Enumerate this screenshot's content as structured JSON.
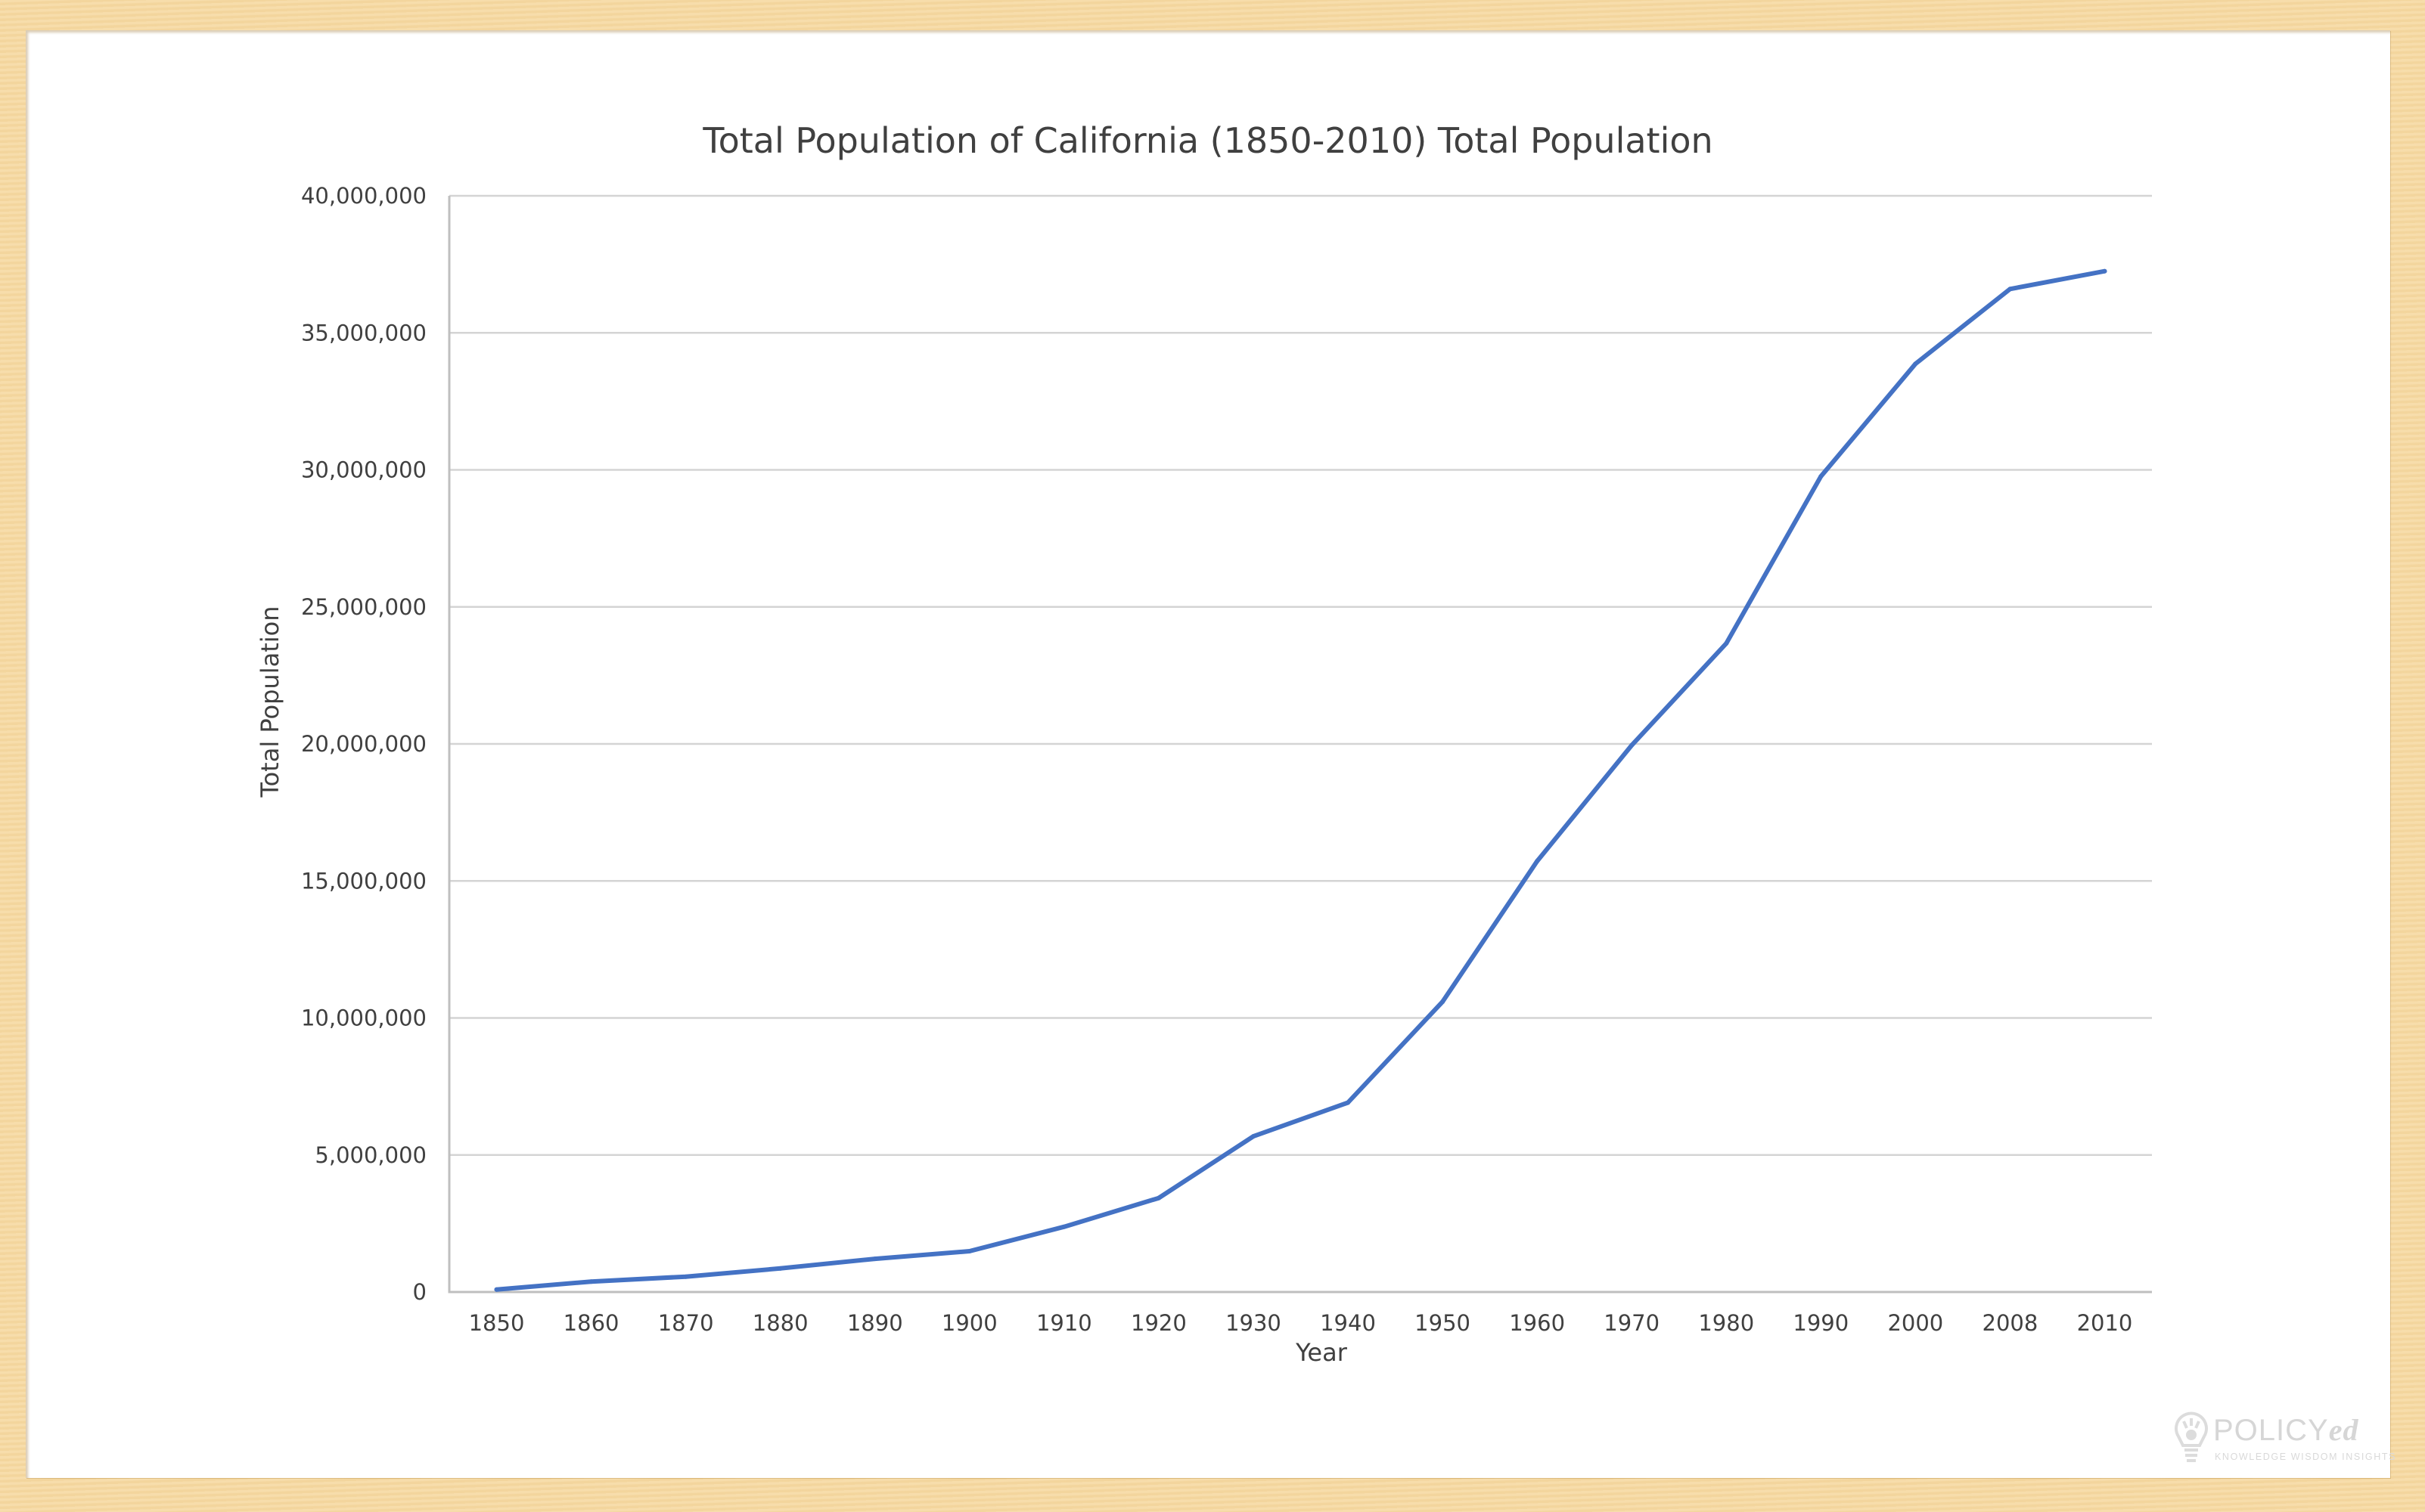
{
  "colors": {
    "series": "#4472c4",
    "frame": "#f6d9a2",
    "panel": "#ffffff",
    "text": "#404040",
    "grid": "#d4d4d4"
  },
  "chart_data": {
    "type": "line",
    "title": "Total Population of California (1850-2010) Total Population",
    "xlabel": "Year",
    "ylabel": "Total Population",
    "ylim": [
      0,
      40000000
    ],
    "grid": true,
    "legend": "none",
    "y_ticks": [
      0,
      5000000,
      10000000,
      15000000,
      20000000,
      25000000,
      30000000,
      35000000,
      40000000
    ],
    "y_tick_labels": [
      "0",
      "5,000,000",
      "10,000,000",
      "15,000,000",
      "20,000,000",
      "25,000,000",
      "30,000,000",
      "35,000,000",
      "40,000,000"
    ],
    "categories": [
      "1850",
      "1860",
      "1870",
      "1880",
      "1890",
      "1900",
      "1910",
      "1920",
      "1930",
      "1940",
      "1950",
      "1960",
      "1970",
      "1980",
      "1990",
      "2000",
      "2008",
      "2010"
    ],
    "series": [
      {
        "name": "Total Population",
        "values": [
          90000,
          380000,
          560000,
          860000,
          1210000,
          1490000,
          2380000,
          3430000,
          5680000,
          6910000,
          10590000,
          15720000,
          19950000,
          23670000,
          29760000,
          33870000,
          36600000,
          37250000
        ]
      }
    ]
  },
  "logo": {
    "name_main": "POLICY",
    "name_suffix": "ed",
    "tagline": "KNOWLEDGE WISDOM INSIGHTS"
  }
}
